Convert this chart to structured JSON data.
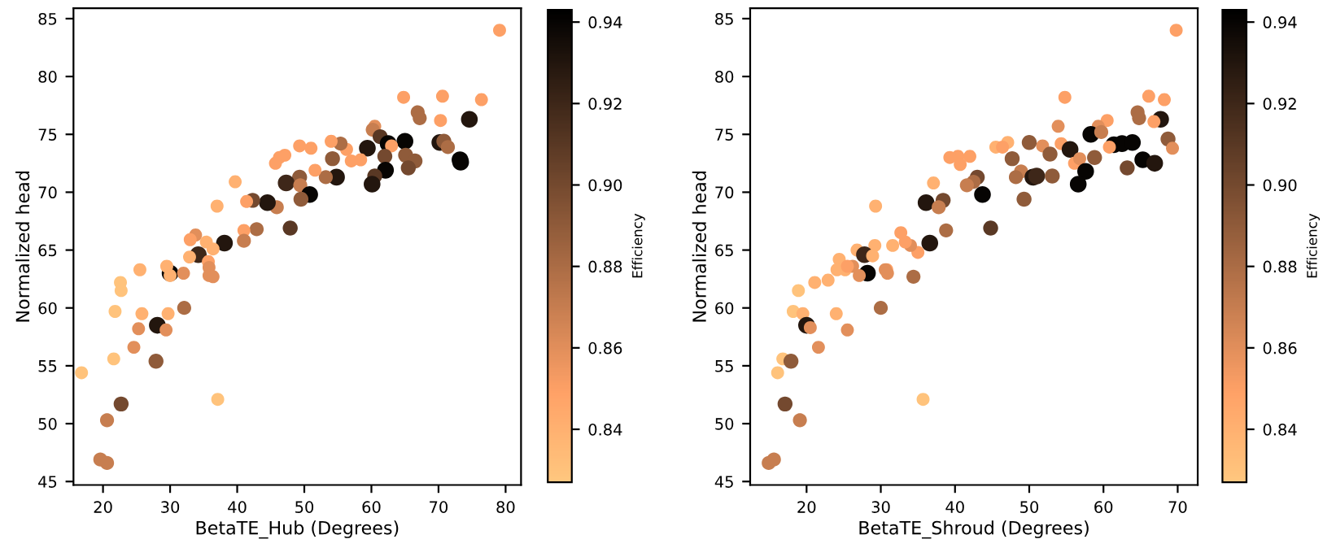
{
  "chart_data": [
    {
      "type": "bubble",
      "xlabel": "BetaTE_Hub (Degrees)",
      "ylabel": "Normalized head",
      "clabel": "Efficiency",
      "xlim": [
        15.6,
        82.3
      ],
      "xticks": [
        20,
        30,
        40,
        50,
        60,
        70,
        80
      ],
      "ylim": [
        44.7,
        85.9
      ],
      "yticks": [
        45,
        50,
        55,
        60,
        65,
        70,
        75,
        80,
        85
      ],
      "clim": [
        0.827,
        0.943
      ],
      "cticks": [
        0.84,
        0.86,
        0.88,
        {
          "value": 0.9,
          "label": "0.90"
        },
        0.92,
        0.94
      ],
      "grid": false,
      "legend": false,
      "marker": "circle",
      "series": [
        {
          "x": [
            79.1,
            64.8,
            70.6,
            76.4,
            66.9,
            67.2,
            70.3,
            74.6,
            60.5,
            60.2,
            61.3,
            59.4,
            62.5,
            65.0,
            70.2,
            70.8,
            71.4,
            63.0,
            65.1,
            66.5,
            62.0,
            65.5,
            62.1,
            73.2,
            73.3,
            60.5,
            60.1,
            58.4,
            57.0,
            56.3,
            55.4,
            54.0,
            54.2,
            54.8,
            53.2,
            51.6,
            51.0,
            49.3,
            47.1,
            46.3,
            45.7,
            49.3,
            47.3,
            49.4,
            50.8,
            49.5,
            45.9,
            44.5,
            42.3,
            41.4,
            39.7,
            37.0,
            47.9,
            42.9,
            41.0,
            41.0,
            38.1,
            33.8,
            33.0,
            35.4,
            34.2,
            36.4,
            35.7,
            32.9,
            30.0,
            25.5,
            29.5,
            35.8,
            35.8,
            36.4,
            32.0,
            30.0,
            22.6,
            22.7,
            21.8,
            25.8,
            29.7,
            32.1,
            25.3,
            28.1,
            29.4,
            24.6,
            21.6,
            27.9,
            16.8,
            22.7,
            37.1,
            20.6,
            19.6,
            20.6
          ],
          "values": [
            84.0,
            78.2,
            78.3,
            78.0,
            76.9,
            76.4,
            76.2,
            76.3,
            75.7,
            75.4,
            74.8,
            73.8,
            74.2,
            74.4,
            74.3,
            74.4,
            73.9,
            74.0,
            73.2,
            72.7,
            73.1,
            72.1,
            71.9,
            72.8,
            72.6,
            71.4,
            70.7,
            72.8,
            72.7,
            73.7,
            74.2,
            74.4,
            72.9,
            71.3,
            71.3,
            71.9,
            73.8,
            74.0,
            73.2,
            73.0,
            72.5,
            71.3,
            70.8,
            70.6,
            69.8,
            69.4,
            68.7,
            69.1,
            69.3,
            69.2,
            70.9,
            68.8,
            66.9,
            66.8,
            66.7,
            65.8,
            65.6,
            66.3,
            65.9,
            65.7,
            64.6,
            65.1,
            64.0,
            64.4,
            63.0,
            63.3,
            63.6,
            63.5,
            62.8,
            62.7,
            63.0,
            62.8,
            62.2,
            61.5,
            59.7,
            59.5,
            59.5,
            60.0,
            58.2,
            58.5,
            58.1,
            56.6,
            55.6,
            55.4,
            54.4,
            51.7,
            52.1,
            50.3,
            46.9,
            46.6
          ],
          "cvalues": [
            0.85,
            0.85,
            0.85,
            0.85,
            0.88,
            0.88,
            0.85,
            0.93,
            0.86,
            0.87,
            0.91,
            0.93,
            0.94,
            0.94,
            0.93,
            0.89,
            0.88,
            0.85,
            0.89,
            0.89,
            0.9,
            0.9,
            0.94,
            0.94,
            0.94,
            0.91,
            0.93,
            0.85,
            0.85,
            0.85,
            0.88,
            0.85,
            0.89,
            0.93,
            0.88,
            0.85,
            0.85,
            0.85,
            0.85,
            0.85,
            0.85,
            0.89,
            0.92,
            0.87,
            0.94,
            0.89,
            0.87,
            0.93,
            0.9,
            0.85,
            0.84,
            0.84,
            0.91,
            0.88,
            0.85,
            0.87,
            0.93,
            0.86,
            0.85,
            0.84,
            0.92,
            0.84,
            0.85,
            0.84,
            0.94,
            0.84,
            0.84,
            0.86,
            0.86,
            0.86,
            0.86,
            0.84,
            0.83,
            0.83,
            0.83,
            0.84,
            0.84,
            0.88,
            0.86,
            0.93,
            0.86,
            0.86,
            0.83,
            0.89,
            0.83,
            0.9,
            0.83,
            0.87,
            0.87,
            0.87
          ],
          "sizes": [
            0.6,
            0.6,
            0.6,
            0.6,
            0.7,
            0.7,
            0.6,
            1,
            0.6,
            0.7,
            0.8,
            1,
            1,
            1,
            1,
            0.8,
            0.7,
            0.6,
            0.8,
            0.8,
            0.8,
            0.8,
            1,
            1,
            1,
            0.8,
            1,
            0.6,
            0.6,
            0.6,
            0.7,
            0.6,
            0.8,
            1,
            0.7,
            0.6,
            0.6,
            0.6,
            0.6,
            0.6,
            0.6,
            0.8,
            1,
            0.7,
            1,
            0.8,
            0.7,
            1,
            0.8,
            0.6,
            0.6,
            0.6,
            0.8,
            0.7,
            0.6,
            0.7,
            1,
            0.6,
            0.6,
            0.6,
            1,
            0.6,
            0.6,
            0.6,
            1,
            0.6,
            0.6,
            0.6,
            0.6,
            0.6,
            0.6,
            0.6,
            0.6,
            0.6,
            0.6,
            0.6,
            0.6,
            0.7,
            0.6,
            1,
            0.6,
            0.6,
            0.6,
            0.8,
            0.6,
            0.8,
            0.6,
            0.7,
            0.7,
            0.7
          ]
        }
      ]
    },
    {
      "type": "bubble",
      "xlabel": "BetaTE_Shroud (Degrees)",
      "ylabel": "Normalized head",
      "clabel": "Efficiency",
      "xlim": [
        12.4,
        72.7
      ],
      "xticks": [
        20,
        30,
        40,
        50,
        60,
        70
      ],
      "ylim": [
        44.7,
        85.9
      ],
      "yticks": [
        45,
        50,
        55,
        60,
        65,
        70,
        75,
        80,
        85
      ],
      "clim": [
        0.827,
        0.943
      ],
      "cticks": [
        0.84,
        0.86,
        0.88,
        {
          "value": 0.9,
          "label": "0.90"
        },
        0.92,
        0.94
      ],
      "grid": false,
      "legend": false,
      "marker": "circle",
      "series": [
        {
          "x": [
            69.8,
            54.8,
            66.1,
            68.2,
            64.6,
            64.8,
            67.7,
            66.8,
            60.5,
            59.3,
            53.9,
            58.3,
            59.7,
            61.4,
            62.5,
            63.9,
            60.8,
            54.3,
            55.5,
            51.8,
            52.8,
            50.0,
            47.1,
            45.5,
            46.4,
            47.7,
            48.9,
            48.2,
            50.5,
            51.0,
            53.1,
            56.1,
            56.8,
            58.8,
            57.6,
            56.6,
            63.2,
            65.3,
            66.9,
            68.7,
            69.3,
            49.3,
            44.8,
            43.7,
            43.0,
            42.5,
            41.6,
            42.0,
            40.4,
            39.3,
            40.7,
            37.1,
            36.1,
            38.4,
            37.8,
            38.8,
            36.6,
            29.3,
            35.0,
            34.0,
            33.3,
            32.7,
            31.6,
            29.2,
            26.8,
            27.8,
            28.9,
            24.4,
            26.2,
            25.2,
            30.8,
            28.2,
            27.1,
            30.6,
            30.9,
            34.4,
            24.1,
            25.5,
            21.1,
            22.9,
            18.9,
            18.2,
            19.5,
            24.0,
            30.0,
            20.0,
            20.5,
            25.5,
            21.6,
            16.8,
            17.9,
            16.1,
            17.1,
            35.7,
            19.1,
            14.9,
            15.6
          ],
          "values": [
            84.0,
            78.2,
            78.3,
            78.0,
            76.9,
            76.4,
            76.3,
            76.1,
            76.2,
            75.7,
            75.7,
            75.0,
            75.2,
            74.1,
            74.2,
            74.3,
            73.9,
            74.2,
            73.7,
            74.0,
            73.3,
            74.3,
            74.3,
            73.9,
            73.9,
            72.9,
            71.8,
            71.3,
            71.3,
            71.4,
            71.4,
            72.5,
            72.9,
            73.0,
            71.8,
            70.7,
            72.1,
            72.8,
            72.5,
            74.6,
            73.8,
            69.4,
            66.9,
            69.8,
            71.3,
            70.9,
            70.6,
            73.1,
            73.1,
            73.0,
            72.4,
            70.8,
            69.1,
            69.3,
            68.7,
            66.7,
            65.6,
            68.8,
            64.8,
            65.4,
            65.7,
            66.5,
            65.4,
            65.4,
            65.0,
            64.6,
            64.5,
            64.2,
            63.6,
            63.3,
            63.3,
            63.0,
            62.8,
            63.3,
            63.0,
            62.7,
            63.3,
            63.6,
            62.2,
            62.4,
            61.5,
            59.7,
            59.5,
            59.5,
            60.0,
            58.5,
            58.3,
            58.1,
            56.6,
            55.6,
            55.4,
            54.4,
            51.7,
            52.1,
            50.3,
            46.6,
            46.9
          ],
          "cvalues": [
            0.85,
            0.85,
            0.85,
            0.85,
            0.88,
            0.88,
            0.93,
            0.85,
            0.85,
            0.86,
            0.86,
            0.94,
            0.87,
            0.94,
            0.94,
            0.94,
            0.85,
            0.85,
            0.93,
            0.86,
            0.89,
            0.89,
            0.84,
            0.84,
            0.85,
            0.89,
            0.87,
            0.88,
            0.93,
            0.92,
            0.89,
            0.85,
            0.86,
            0.89,
            0.94,
            0.94,
            0.9,
            0.94,
            0.93,
            0.89,
            0.86,
            0.89,
            0.91,
            0.94,
            0.9,
            0.88,
            0.87,
            0.85,
            0.85,
            0.85,
            0.85,
            0.84,
            0.93,
            0.9,
            0.87,
            0.88,
            0.93,
            0.84,
            0.85,
            0.86,
            0.85,
            0.85,
            0.84,
            0.84,
            0.84,
            0.92,
            0.84,
            0.84,
            0.86,
            0.84,
            0.85,
            0.94,
            0.86,
            0.86,
            0.86,
            0.88,
            0.84,
            0.85,
            0.84,
            0.84,
            0.83,
            0.83,
            0.84,
            0.84,
            0.88,
            0.93,
            0.86,
            0.86,
            0.86,
            0.83,
            0.89,
            0.83,
            0.9,
            0.83,
            0.87,
            0.87,
            0.87
          ],
          "sizes": [
            0.6,
            0.6,
            0.6,
            0.6,
            0.7,
            0.7,
            1,
            0.6,
            0.6,
            0.6,
            0.6,
            1,
            0.7,
            1,
            1,
            1,
            0.6,
            0.6,
            1,
            0.6,
            0.8,
            0.8,
            0.6,
            0.6,
            0.6,
            0.8,
            0.7,
            0.7,
            1,
            1,
            0.8,
            0.6,
            0.6,
            0.8,
            1,
            1,
            0.8,
            1,
            1,
            0.8,
            0.6,
            0.8,
            0.8,
            1,
            0.8,
            0.7,
            0.7,
            0.6,
            0.6,
            0.6,
            0.6,
            0.6,
            1,
            0.8,
            0.7,
            0.7,
            1,
            0.6,
            0.6,
            0.6,
            0.6,
            0.6,
            0.6,
            0.6,
            0.6,
            1,
            0.6,
            0.6,
            0.6,
            0.6,
            0.6,
            1,
            0.6,
            0.6,
            0.6,
            0.7,
            0.6,
            0.6,
            0.6,
            0.6,
            0.6,
            0.6,
            0.6,
            0.6,
            0.7,
            1,
            0.6,
            0.6,
            0.6,
            0.6,
            0.8,
            0.6,
            0.8,
            0.6,
            0.7,
            0.7,
            0.7
          ]
        }
      ]
    }
  ]
}
